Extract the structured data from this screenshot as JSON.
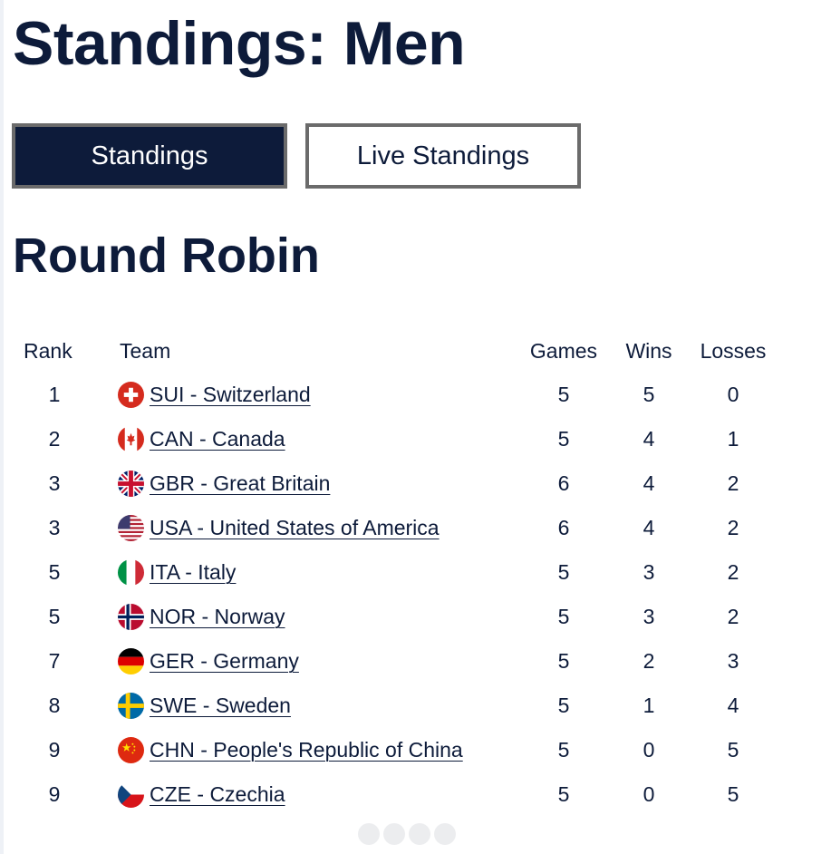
{
  "page": {
    "title": "Standings: Men",
    "section_title": "Round Robin"
  },
  "tabs": [
    {
      "label": "Standings",
      "active": true
    },
    {
      "label": "Live Standings",
      "active": false
    }
  ],
  "table": {
    "headers": {
      "rank": "Rank",
      "team": "Team",
      "games": "Games",
      "wins": "Wins",
      "losses": "Losses"
    },
    "rows": [
      {
        "rank": "1",
        "team": "SUI - Switzerland",
        "flag": "switzerland-flag-icon",
        "games": "5",
        "wins": "5",
        "losses": "0"
      },
      {
        "rank": "2",
        "team": "CAN - Canada",
        "flag": "canada-flag-icon",
        "games": "5",
        "wins": "4",
        "losses": "1"
      },
      {
        "rank": "3",
        "team": "GBR - Great Britain",
        "flag": "great-britain-flag-icon",
        "games": "6",
        "wins": "4",
        "losses": "2"
      },
      {
        "rank": "3",
        "team": "USA - United States of America",
        "flag": "usa-flag-icon",
        "games": "6",
        "wins": "4",
        "losses": "2"
      },
      {
        "rank": "5",
        "team": "ITA - Italy",
        "flag": "italy-flag-icon",
        "games": "5",
        "wins": "3",
        "losses": "2"
      },
      {
        "rank": "5",
        "team": "NOR - Norway",
        "flag": "norway-flag-icon",
        "games": "5",
        "wins": "3",
        "losses": "2"
      },
      {
        "rank": "7",
        "team": "GER - Germany",
        "flag": "germany-flag-icon",
        "games": "5",
        "wins": "2",
        "losses": "3"
      },
      {
        "rank": "8",
        "team": "SWE - Sweden",
        "flag": "sweden-flag-icon",
        "games": "5",
        "wins": "1",
        "losses": "4"
      },
      {
        "rank": "9",
        "team": "CHN - People's Republic of China",
        "flag": "china-flag-icon",
        "games": "5",
        "wins": "0",
        "losses": "5"
      },
      {
        "rank": "9",
        "team": "CZE - Czechia",
        "flag": "czechia-flag-icon",
        "games": "5",
        "wins": "0",
        "losses": "5"
      }
    ]
  },
  "colors": {
    "primary": "#0d1b3a",
    "tab_border": "#6b6b6b"
  }
}
